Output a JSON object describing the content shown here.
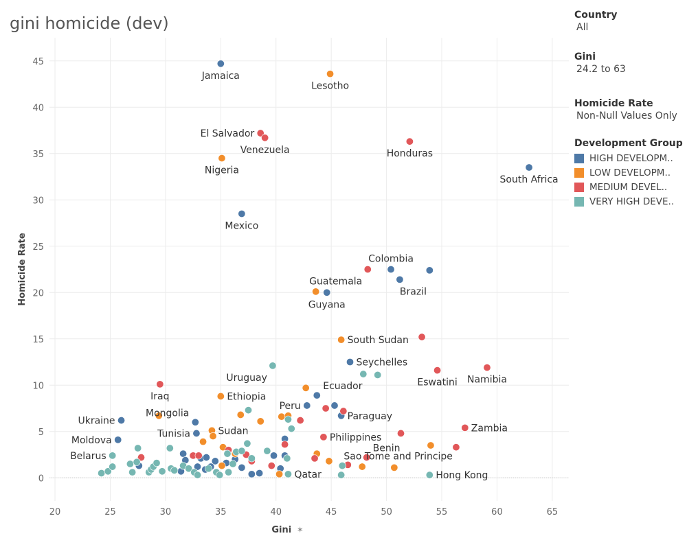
{
  "title": "gini homicide (dev)",
  "filters": [
    {
      "title": "Country",
      "value": "All"
    },
    {
      "title": "Gini",
      "value": "24.2 to 63"
    },
    {
      "title": "Homicide Rate",
      "value": "Non-Null Values Only"
    }
  ],
  "legend": {
    "title": "Development Group",
    "items": [
      {
        "label": "HIGH DEVELOPM..",
        "color": "#4e79a7"
      },
      {
        "label": "LOW DEVELOPM..",
        "color": "#f28e2b"
      },
      {
        "label": "MEDIUM DEVEL..",
        "color": "#e15759"
      },
      {
        "label": "VERY HIGH DEVE..",
        "color": "#76b7b2"
      }
    ]
  },
  "chart_data": {
    "type": "scatter",
    "xlabel": "Gini",
    "ylabel": "Homicide Rate",
    "xlim": [
      19.5,
      66.5
    ],
    "ylim": [
      -2.5,
      47.5
    ],
    "xticks": [
      20,
      25,
      30,
      35,
      40,
      45,
      50,
      55,
      60,
      65
    ],
    "yticks": [
      0,
      5,
      10,
      15,
      20,
      25,
      30,
      35,
      40,
      45
    ],
    "grid": true,
    "legend_position": "right",
    "series": [
      {
        "name": "HIGH DEVELOPM..",
        "color": "#4e79a7",
        "points": [
          {
            "x": 35.0,
            "y": 44.7,
            "label": "Jamaica",
            "lpos": "below"
          },
          {
            "x": 62.9,
            "y": 33.5,
            "label": "South Africa",
            "lpos": "below"
          },
          {
            "x": 36.9,
            "y": 28.5,
            "label": "Mexico",
            "lpos": "below"
          },
          {
            "x": 50.4,
            "y": 22.5,
            "label": "Colombia",
            "lpos": "above"
          },
          {
            "x": 53.9,
            "y": 22.4
          },
          {
            "x": 51.2,
            "y": 21.4,
            "label": "Brazil",
            "lpos": "belowright"
          },
          {
            "x": 44.6,
            "y": 20.0,
            "label": "Guyana",
            "lpos": "below"
          },
          {
            "x": 46.7,
            "y": 12.5,
            "label": "Seychelles",
            "lpos": "right"
          },
          {
            "x": 43.7,
            "y": 8.9,
            "label": "Ecuador",
            "lpos": "rightup"
          },
          {
            "x": 45.3,
            "y": 7.8
          },
          {
            "x": 42.8,
            "y": 7.8,
            "label": "Peru",
            "lpos": "left"
          },
          {
            "x": 45.9,
            "y": 6.7,
            "label": "Paraguay",
            "lpos": "right"
          },
          {
            "x": 26.0,
            "y": 6.2,
            "label": "Ukraine",
            "lpos": "left"
          },
          {
            "x": 32.7,
            "y": 6.0,
            "label": "Mongolia",
            "lpos": "leftup"
          },
          {
            "x": 32.8,
            "y": 4.8,
            "label": "Tunisia",
            "lpos": "left"
          },
          {
            "x": 25.7,
            "y": 4.1,
            "label": "Moldova",
            "lpos": "left"
          },
          {
            "x": 40.8,
            "y": 4.2
          },
          {
            "x": 31.6,
            "y": 2.6
          },
          {
            "x": 31.8,
            "y": 1.9
          },
          {
            "x": 33.2,
            "y": 2.1
          },
          {
            "x": 33.7,
            "y": 2.2
          },
          {
            "x": 34.5,
            "y": 1.8
          },
          {
            "x": 35.5,
            "y": 1.6
          },
          {
            "x": 36.3,
            "y": 2.0
          },
          {
            "x": 27.6,
            "y": 1.3
          },
          {
            "x": 31.4,
            "y": 0.7
          },
          {
            "x": 32.9,
            "y": 1.2
          },
          {
            "x": 33.6,
            "y": 0.9
          },
          {
            "x": 34.1,
            "y": 1.2
          },
          {
            "x": 36.9,
            "y": 1.1
          },
          {
            "x": 37.8,
            "y": 0.4
          },
          {
            "x": 38.5,
            "y": 0.5
          },
          {
            "x": 39.8,
            "y": 2.4
          },
          {
            "x": 40.8,
            "y": 2.4
          },
          {
            "x": 40.4,
            "y": 1.0
          }
        ]
      },
      {
        "name": "LOW DEVELOPM..",
        "color": "#f28e2b",
        "points": [
          {
            "x": 44.9,
            "y": 43.6,
            "label": "Lesotho",
            "lpos": "below"
          },
          {
            "x": 35.1,
            "y": 34.5,
            "label": "Nigeria",
            "lpos": "below"
          },
          {
            "x": 43.6,
            "y": 20.1
          },
          {
            "x": 45.9,
            "y": 14.9,
            "label": "South Sudan",
            "lpos": "right"
          },
          {
            "x": 42.7,
            "y": 9.7
          },
          {
            "x": 35.0,
            "y": 8.8,
            "label": "Ethiopia",
            "lpos": "right"
          },
          {
            "x": 29.4,
            "y": 6.7
          },
          {
            "x": 36.8,
            "y": 6.8
          },
          {
            "x": 38.6,
            "y": 6.1
          },
          {
            "x": 40.5,
            "y": 6.6
          },
          {
            "x": 41.1,
            "y": 6.7
          },
          {
            "x": 34.2,
            "y": 5.1,
            "label": "Sudan",
            "lpos": "right"
          },
          {
            "x": 33.4,
            "y": 3.9
          },
          {
            "x": 34.3,
            "y": 4.5
          },
          {
            "x": 35.2,
            "y": 3.3
          },
          {
            "x": 35.1,
            "y": 1.3
          },
          {
            "x": 36.3,
            "y": 2.6
          },
          {
            "x": 43.7,
            "y": 2.6
          },
          {
            "x": 44.8,
            "y": 1.8
          },
          {
            "x": 47.8,
            "y": 1.2
          },
          {
            "x": 40.3,
            "y": 0.4
          },
          {
            "x": 50.7,
            "y": 1.1
          },
          {
            "x": 54.0,
            "y": 3.5
          }
        ]
      },
      {
        "name": "MEDIUM DEVEL..",
        "color": "#e15759",
        "points": [
          {
            "x": 38.6,
            "y": 37.2,
            "label": "El Salvador",
            "lpos": "left"
          },
          {
            "x": 39.0,
            "y": 36.7,
            "label": "Venezuela",
            "lpos": "below"
          },
          {
            "x": 52.1,
            "y": 36.3,
            "label": "Honduras",
            "lpos": "below"
          },
          {
            "x": 48.3,
            "y": 22.5,
            "label": "Guatemala",
            "lpos": "belowleft"
          },
          {
            "x": 53.2,
            "y": 15.2
          },
          {
            "x": 54.6,
            "y": 11.6,
            "label": "Eswatini",
            "lpos": "below"
          },
          {
            "x": 59.1,
            "y": 11.9,
            "label": "Namibia",
            "lpos": "below"
          },
          {
            "x": 29.5,
            "y": 10.1,
            "label": "Iraq",
            "lpos": "below"
          },
          {
            "x": 57.1,
            "y": 5.4,
            "label": "Zambia",
            "lpos": "right"
          },
          {
            "x": 51.3,
            "y": 4.8
          },
          {
            "x": 44.3,
            "y": 4.4,
            "label": "Philippines",
            "lpos": "right"
          },
          {
            "x": 44.5,
            "y": 7.5
          },
          {
            "x": 46.1,
            "y": 7.2
          },
          {
            "x": 42.2,
            "y": 6.2
          },
          {
            "x": 56.3,
            "y": 3.3,
            "label": "Sao Tome and Principe",
            "lpos": "leftbelow"
          },
          {
            "x": 48.2,
            "y": 2.2,
            "label": "Benin",
            "lpos": "rightup"
          },
          {
            "x": 46.5,
            "y": 1.4
          },
          {
            "x": 43.5,
            "y": 2.1
          },
          {
            "x": 40.8,
            "y": 3.6
          },
          {
            "x": 39.6,
            "y": 1.3
          },
          {
            "x": 37.3,
            "y": 2.5
          },
          {
            "x": 37.8,
            "y": 1.8
          },
          {
            "x": 35.7,
            "y": 3.0
          },
          {
            "x": 32.5,
            "y": 2.4
          },
          {
            "x": 33.0,
            "y": 2.4
          },
          {
            "x": 27.8,
            "y": 2.2
          }
        ]
      },
      {
        "name": "VERY HIGH DEVE..",
        "color": "#76b7b2",
        "points": [
          {
            "x": 39.7,
            "y": 12.1,
            "label": "Uruguay",
            "lpos": "belowleft"
          },
          {
            "x": 47.9,
            "y": 11.2
          },
          {
            "x": 49.2,
            "y": 11.1
          },
          {
            "x": 37.5,
            "y": 7.3
          },
          {
            "x": 41.4,
            "y": 5.3
          },
          {
            "x": 41.1,
            "y": 6.3
          },
          {
            "x": 53.9,
            "y": 0.3,
            "label": "Hong Kong",
            "lpos": "right"
          },
          {
            "x": 41.1,
            "y": 0.4,
            "label": "Qatar",
            "lpos": "right"
          },
          {
            "x": 25.2,
            "y": 2.4,
            "label": "Belarus",
            "lpos": "left"
          },
          {
            "x": 24.2,
            "y": 0.5
          },
          {
            "x": 24.8,
            "y": 0.7
          },
          {
            "x": 25.2,
            "y": 1.2
          },
          {
            "x": 26.8,
            "y": 1.5
          },
          {
            "x": 27.0,
            "y": 0.6
          },
          {
            "x": 27.5,
            "y": 3.2
          },
          {
            "x": 27.4,
            "y": 1.7
          },
          {
            "x": 28.5,
            "y": 0.6
          },
          {
            "x": 28.7,
            "y": 0.9
          },
          {
            "x": 28.9,
            "y": 1.2
          },
          {
            "x": 29.2,
            "y": 1.6
          },
          {
            "x": 29.7,
            "y": 0.7
          },
          {
            "x": 30.4,
            "y": 3.2
          },
          {
            "x": 30.5,
            "y": 1.0
          },
          {
            "x": 30.8,
            "y": 0.8
          },
          {
            "x": 31.6,
            "y": 1.3
          },
          {
            "x": 32.1,
            "y": 1.0
          },
          {
            "x": 32.6,
            "y": 0.6
          },
          {
            "x": 32.9,
            "y": 0.3
          },
          {
            "x": 33.9,
            "y": 1.0
          },
          {
            "x": 34.6,
            "y": 0.6
          },
          {
            "x": 34.9,
            "y": 0.3
          },
          {
            "x": 35.7,
            "y": 0.6
          },
          {
            "x": 36.1,
            "y": 1.5
          },
          {
            "x": 36.4,
            "y": 2.8
          },
          {
            "x": 36.9,
            "y": 2.9
          },
          {
            "x": 37.4,
            "y": 3.7
          },
          {
            "x": 35.6,
            "y": 2.6
          },
          {
            "x": 39.2,
            "y": 2.9
          },
          {
            "x": 41.0,
            "y": 2.1
          },
          {
            "x": 45.9,
            "y": 0.3
          },
          {
            "x": 46.0,
            "y": 1.3
          },
          {
            "x": 37.8,
            "y": 2.1
          }
        ]
      }
    ]
  }
}
